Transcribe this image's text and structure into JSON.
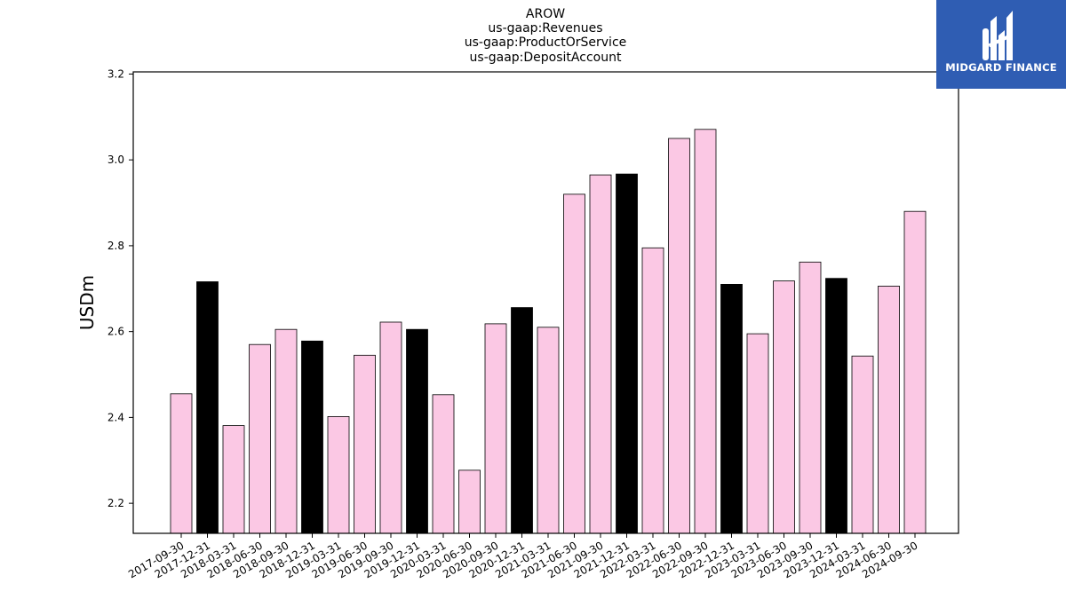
{
  "chart_data": {
    "type": "bar",
    "title_lines": [
      "AROW",
      "us-gaap:Revenues",
      "us-gaap:ProductOrService",
      "us-gaap:DepositAccount"
    ],
    "ylabel": "USDm",
    "ylim": [
      2.13,
      3.205
    ],
    "yticks": [
      2.2,
      2.4,
      2.6,
      2.8,
      3.0,
      3.2
    ],
    "grid": false,
    "categories": [
      "2017-09-30",
      "2017-12-31",
      "2018-03-31",
      "2018-06-30",
      "2018-09-30",
      "2018-12-31",
      "2019-03-31",
      "2019-06-30",
      "2019-09-30",
      "2019-12-31",
      "2020-03-31",
      "2020-06-30",
      "2020-09-30",
      "2020-12-31",
      "2021-03-31",
      "2021-06-30",
      "2021-09-30",
      "2021-12-31",
      "2022-03-31",
      "2022-06-30",
      "2022-09-30",
      "2022-12-31",
      "2023-03-31",
      "2023-06-30",
      "2023-09-30",
      "2023-12-31",
      "2024-03-31",
      "2024-06-30",
      "2024-09-30"
    ],
    "values": [
      2.455,
      2.716,
      2.381,
      2.57,
      2.605,
      2.578,
      2.402,
      2.545,
      2.622,
      2.605,
      2.453,
      2.277,
      2.618,
      2.656,
      2.61,
      2.92,
      2.965,
      2.967,
      2.795,
      3.05,
      3.071,
      2.71,
      2.595,
      2.718,
      2.762,
      2.724,
      2.543,
      2.706,
      2.88
    ],
    "bar_colors": [
      "#fbc8e4",
      "#000000",
      "#fbc8e4",
      "#fbc8e4",
      "#fbc8e4",
      "#000000",
      "#fbc8e4",
      "#fbc8e4",
      "#fbc8e4",
      "#000000",
      "#fbc8e4",
      "#fbc8e4",
      "#fbc8e4",
      "#000000",
      "#fbc8e4",
      "#fbc8e4",
      "#fbc8e4",
      "#000000",
      "#fbc8e4",
      "#fbc8e4",
      "#fbc8e4",
      "#000000",
      "#fbc8e4",
      "#fbc8e4",
      "#fbc8e4",
      "#000000",
      "#fbc8e4",
      "#fbc8e4",
      "#fbc8e4"
    ]
  },
  "logo": {
    "text": "MIDGARD FINANCE",
    "background": "#2f5db3"
  }
}
